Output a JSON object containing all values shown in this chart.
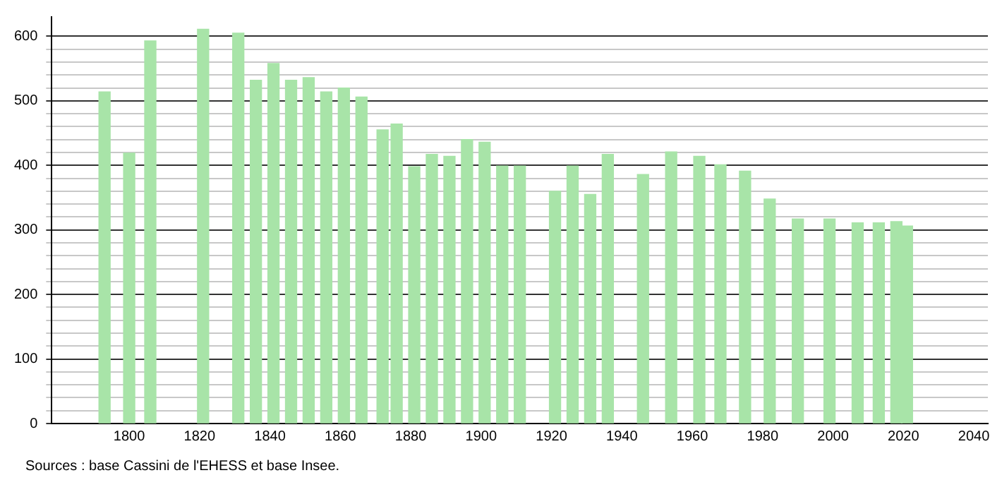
{
  "chart_data": {
    "type": "bar",
    "x": [
      1793,
      1800,
      1806,
      1821,
      1831,
      1836,
      1841,
      1846,
      1851,
      1856,
      1861,
      1866,
      1872,
      1876,
      1881,
      1886,
      1891,
      1896,
      1901,
      1906,
      1911,
      1921,
      1926,
      1931,
      1936,
      1946,
      1954,
      1962,
      1968,
      1975,
      1982,
      1990,
      1999,
      2007,
      2013,
      2018,
      2021
    ],
    "values": [
      514,
      419,
      593,
      611,
      605,
      532,
      558,
      532,
      536,
      514,
      520,
      506,
      455,
      464,
      398,
      417,
      414,
      440,
      436,
      399,
      399,
      360,
      399,
      355,
      417,
      386,
      421,
      414,
      401,
      391,
      348,
      317,
      317,
      311,
      311,
      313,
      306
    ],
    "color": "#a8e4a8",
    "xlim": [
      1778,
      2044
    ],
    "xticks": [
      1800,
      1820,
      1840,
      1860,
      1880,
      1900,
      1920,
      1940,
      1960,
      1980,
      2000,
      2020,
      2040
    ],
    "ylim": [
      0,
      630
    ],
    "yticks": [
      0,
      {
        "value": 20,
        "label": null
      },
      {
        "value": 40,
        "label": null
      },
      {
        "value": 60,
        "label": null
      },
      {
        "value": 80,
        "label": null
      },
      100,
      {
        "value": 120,
        "label": null
      },
      {
        "value": 140,
        "label": null
      },
      {
        "value": 160,
        "label": null
      },
      {
        "value": 180,
        "label": null
      },
      200,
      {
        "value": 220,
        "label": null
      },
      {
        "value": 240,
        "label": null
      },
      {
        "value": 260,
        "label": null
      },
      {
        "value": 280,
        "label": null
      },
      300,
      {
        "value": 320,
        "label": null
      },
      {
        "value": 340,
        "label": null
      },
      {
        "value": 360,
        "label": null
      },
      {
        "value": 380,
        "label": null
      },
      400,
      {
        "value": 420,
        "label": null
      },
      {
        "value": 440,
        "label": null
      },
      {
        "value": 460,
        "label": null
      },
      {
        "value": 480,
        "label": null
      },
      500,
      {
        "value": 520,
        "label": null
      },
      {
        "value": 540,
        "label": null
      },
      {
        "value": 560,
        "label": null
      },
      {
        "value": 580,
        "label": null
      },
      600
    ],
    "grid": "y",
    "legend": false,
    "annotations": [
      "Sources : base Cassini de l'EHESS et base Insee."
    ]
  }
}
